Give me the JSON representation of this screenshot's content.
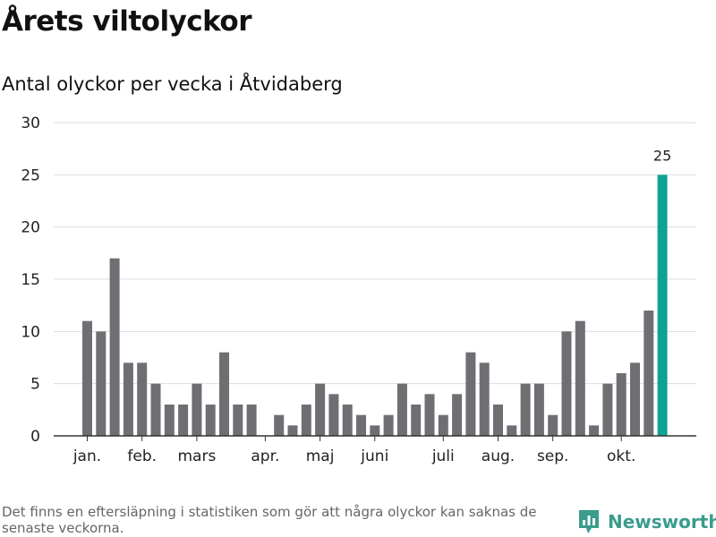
{
  "page": {
    "title": "Årets viltolyckor",
    "subtitle": "Antal olyckor per vecka i Åtvidaberg",
    "footnote": "Det finns en eftersläpning i statistiken som gör att några olyckor kan saknas de senaste veckorna.",
    "brand": "Newsworthy"
  },
  "colors": {
    "bar": "#706e73",
    "highlight": "#0fa293",
    "grid": "#dddddd",
    "axis": "#333333",
    "brand": "#3b9c8c"
  },
  "chart_data": {
    "type": "bar",
    "title": "Antal olyckor per vecka i Åtvidaberg",
    "xlabel": "",
    "ylabel": "",
    "ylim": [
      0,
      30
    ],
    "yticks": [
      0,
      5,
      10,
      15,
      20,
      25,
      30
    ],
    "grid": true,
    "values": [
      11,
      10,
      17,
      7,
      7,
      5,
      3,
      3,
      5,
      3,
      8,
      3,
      3,
      0,
      2,
      1,
      3,
      5,
      4,
      3,
      2,
      1,
      2,
      5,
      3,
      4,
      2,
      4,
      8,
      7,
      3,
      1,
      5,
      5,
      2,
      10,
      11,
      1,
      5,
      6,
      7,
      12,
      25
    ],
    "highlight_index": 42,
    "highlight_label": "25",
    "month_labels": [
      {
        "label": "jan.",
        "week_index": 0
      },
      {
        "label": "feb.",
        "week_index": 4
      },
      {
        "label": "mars",
        "week_index": 8
      },
      {
        "label": "apr.",
        "week_index": 13
      },
      {
        "label": "maj",
        "week_index": 17
      },
      {
        "label": "juni",
        "week_index": 21
      },
      {
        "label": "juli",
        "week_index": 26
      },
      {
        "label": "aug.",
        "week_index": 30
      },
      {
        "label": "sep.",
        "week_index": 34
      },
      {
        "label": "okt.",
        "week_index": 39
      }
    ]
  }
}
